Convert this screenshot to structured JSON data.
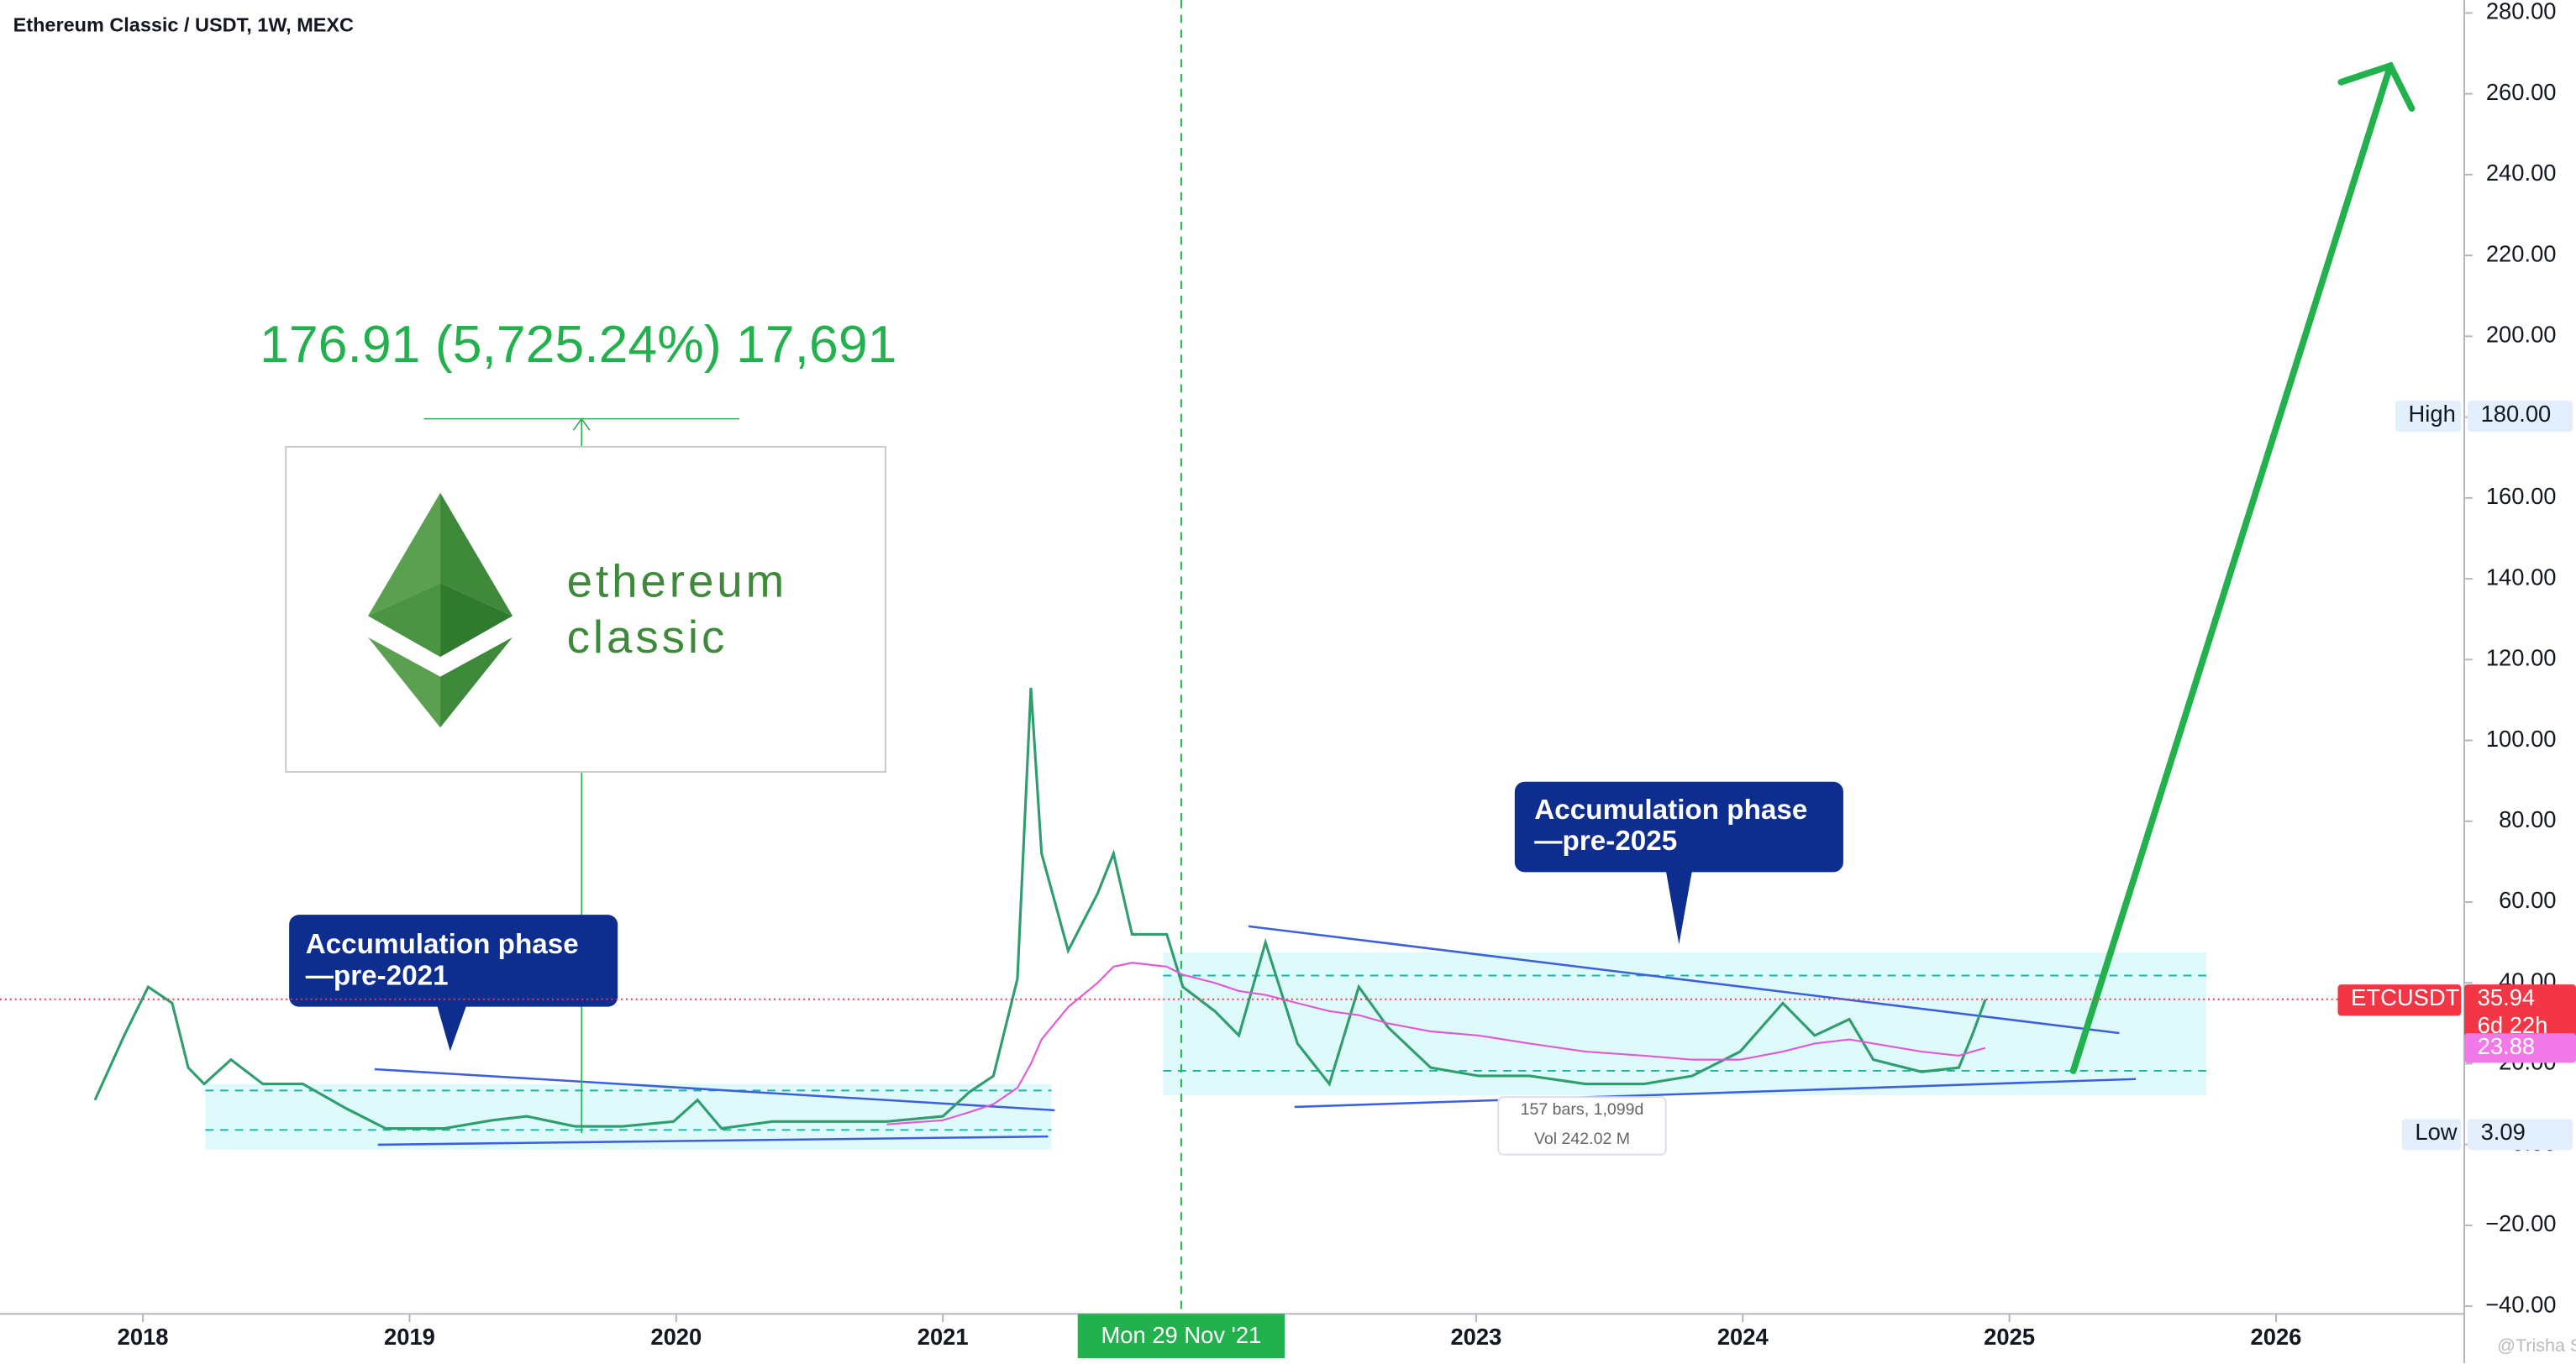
{
  "chart_data": {
    "type": "line",
    "title": "Ethereum Classic / USDT, 1W, MEXC",
    "x": [
      2017.82,
      2017.93,
      2018.02,
      2018.11,
      2018.17,
      2018.23,
      2018.33,
      2018.45,
      2018.6,
      2018.76,
      2018.91,
      2019.13,
      2019.31,
      2019.44,
      2019.62,
      2019.8,
      2019.99,
      2020.08,
      2020.17,
      2020.36,
      2020.54,
      2020.79,
      2021.0,
      2021.1,
      2021.19,
      2021.28,
      2021.33,
      2021.37,
      2021.47,
      2021.58,
      2021.64,
      2021.71,
      2021.84,
      2021.9,
      2022.02,
      2022.11,
      2022.21,
      2022.33,
      2022.45,
      2022.56,
      2022.67,
      2022.83,
      2023.01,
      2023.2,
      2023.41,
      2023.63,
      2023.81,
      2023.99,
      2024.15,
      2024.27,
      2024.4,
      2024.49,
      2024.67,
      2024.81,
      2024.86,
      2024.91
    ],
    "series": [
      {
        "name": "ETCUSDT",
        "color": "#2f9e6e",
        "values": [
          11,
          27,
          39,
          35,
          19,
          15,
          21,
          15,
          15,
          9,
          4,
          4,
          6,
          7,
          4.5,
          4.5,
          5.7,
          11,
          4,
          5.7,
          5.7,
          5.7,
          7,
          13,
          17,
          41,
          113,
          72,
          48,
          62,
          72,
          52,
          52,
          39,
          33,
          27,
          50,
          25,
          15,
          39,
          29,
          19,
          17,
          17,
          15,
          15,
          17,
          23,
          35,
          27,
          31,
          21,
          18,
          19,
          27,
          35.94
        ]
      },
      {
        "color": "#e05ad8",
        "values": [
          null,
          null,
          null,
          null,
          null,
          null,
          null,
          null,
          null,
          null,
          null,
          null,
          null,
          null,
          null,
          null,
          null,
          null,
          null,
          null,
          null,
          5,
          6,
          8,
          10,
          14,
          20,
          26,
          34,
          40,
          44,
          45,
          44,
          42,
          40,
          38,
          37,
          35,
          33,
          32,
          30,
          28,
          27,
          25,
          23,
          22,
          21,
          21,
          23,
          25,
          26,
          25,
          23,
          22,
          23,
          23.88
        ]
      }
    ],
    "xlim": [
      2017.464,
      2026.706
    ],
    "xticks": [
      2018,
      2019,
      2020,
      2021,
      2023,
      2024,
      2025,
      2026
    ],
    "ylim": [
      -41.9,
      283.2
    ],
    "yticks": [
      {
        "value": -40,
        "label": "−40.00"
      },
      {
        "value": -20,
        "label": "−20.00"
      },
      {
        "value": 0,
        "label": "0.00"
      },
      {
        "value": 20,
        "label": "20.00"
      },
      {
        "value": 40,
        "label": "40.00"
      },
      {
        "value": 60,
        "label": "60.00"
      },
      {
        "value": 80,
        "label": "80.00"
      },
      {
        "value": 100,
        "label": "100.00"
      },
      {
        "value": 120,
        "label": "120.00"
      },
      {
        "value": 140,
        "label": "140.00"
      },
      {
        "value": 160,
        "label": "160.00"
      },
      {
        "value": 180,
        "label": "180.00"
      },
      {
        "value": 200,
        "label": "200.00"
      },
      {
        "value": 220,
        "label": "220.00"
      },
      {
        "value": 240,
        "label": "240.00"
      },
      {
        "value": 260,
        "label": "260.00"
      },
      {
        "value": 280,
        "label": "280.00"
      }
    ],
    "grid": false,
    "high_label": "High",
    "high": {
      "value": 180,
      "label": "180.00"
    },
    "low_label": "Low",
    "low": {
      "value": 3.09,
      "label": "3.09"
    },
    "last_label": "ETCUSDT",
    "last": {
      "value": 35.94,
      "label": "35.94"
    },
    "countdown": "6d 22h",
    "ma_last": {
      "value": 23.88,
      "label": "23.88"
    },
    "crosshair_date": "Mon 29 Nov '21",
    "measure": "176.91 (5,725.24%) 17,691",
    "logo": [
      "ethereum",
      "classic"
    ],
    "callouts": [
      [
        "Accumulation phase",
        "—pre-2021"
      ],
      [
        "Accumulation phase",
        "—pre-2025"
      ]
    ],
    "range_info": [
      "157 bars, 1,099d",
      "Vol 242.02 M"
    ],
    "watermark": "@Trisha Saha"
  }
}
